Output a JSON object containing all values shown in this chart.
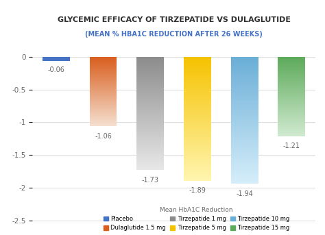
{
  "title_line1": "GLYCEMIC EFFICACY OF TIRZEPATIDE VS DULAGLUTIDE",
  "title_line2": "(MEAN % HBA1C REDUCTION AFTER 26 WEEKS)",
  "values": [
    -0.06,
    -1.06,
    -1.73,
    -1.89,
    -1.94,
    -1.21
  ],
  "labels": [
    "-0.06",
    "-1.06",
    "-1.73",
    "-1.89",
    "-1.94",
    "-1.21"
  ],
  "label_y_offsets": [
    0.09,
    0.09,
    0.09,
    0.09,
    0.09,
    0.09
  ],
  "bar_top_colors": [
    "#4472C4",
    "#D95E1E",
    "#8C8C8C",
    "#F5C200",
    "#6AAED6",
    "#5DAA5A"
  ],
  "bar_bottom_colors": [
    "#4472C4",
    "#F5E0D0",
    "#E8E8E8",
    "#FFF5B0",
    "#D6EEFA",
    "#D0EAD0"
  ],
  "ylim": [
    -2.65,
    0.15
  ],
  "yticks": [
    0,
    -0.5,
    -1,
    -1.5,
    -2,
    -2.5
  ],
  "background_color": "#FFFFFF",
  "grid_color": "#D8D8D8",
  "title_color1": "#2E2E2E",
  "title_color2": "#4472C4",
  "legend_title": "Mean HbA1C Reduction",
  "legend_labels": [
    "Placebo",
    "Dulaglutide 1.5 mg",
    "Tirzepatide 1 mg",
    "Tirzepatide 5 mg",
    "Tirzepatide 10 mg",
    "Tirzepatide 15 mg"
  ],
  "legend_colors": [
    "#4472C4",
    "#D95E1E",
    "#8C8C8C",
    "#F5C200",
    "#6AAED6",
    "#5DAA5A"
  ],
  "label_fontsize": 7,
  "axis_fontsize": 7.5,
  "title_fontsize1": 8.0,
  "title_fontsize2": 7.0
}
